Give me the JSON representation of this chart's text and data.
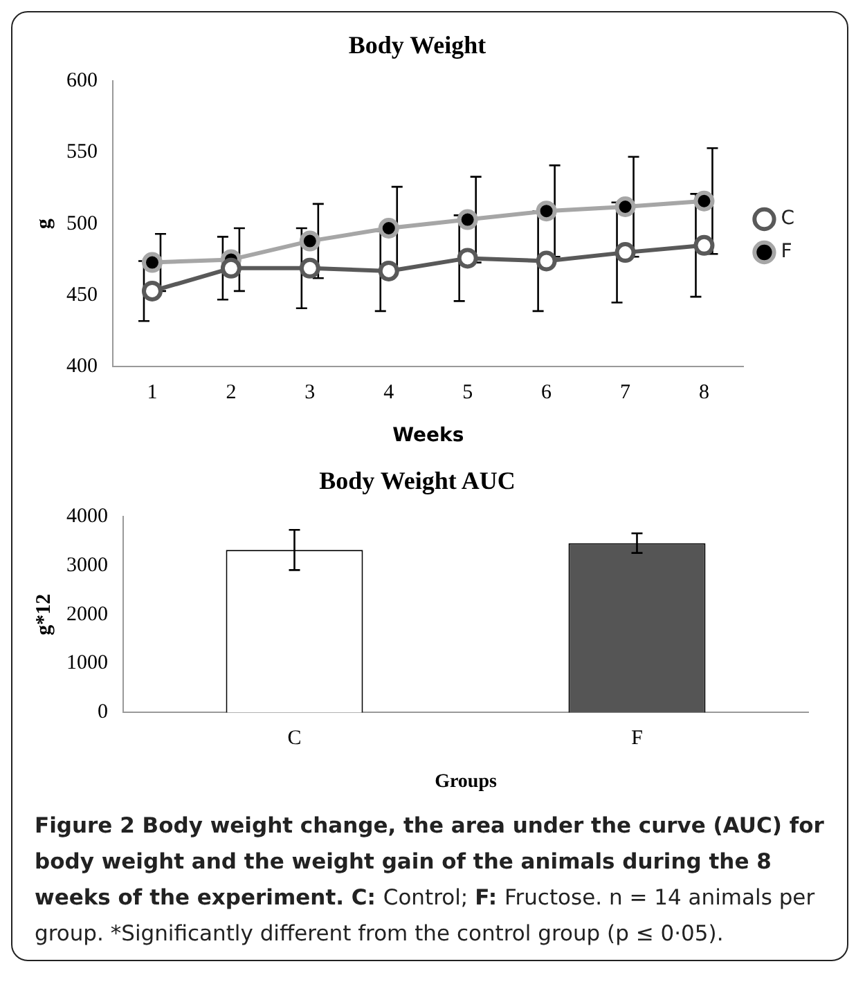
{
  "chart_data": [
    {
      "type": "line",
      "title": "Body Weight",
      "xlabel": "Weeks",
      "ylabel": "g",
      "categories": [
        "1",
        "2",
        "3",
        "4",
        "5",
        "6",
        "7",
        "8"
      ],
      "ylim": [
        400,
        600
      ],
      "yticks": [
        400,
        450,
        500,
        550,
        600
      ],
      "grid": false,
      "legend": "right",
      "marker": "circle",
      "line_style": "solid",
      "series": [
        {
          "name": "C",
          "color": "#595959",
          "colors": [
            "#ffffff",
            "#ffffff",
            "#ffffff",
            "#ffffff",
            "#ffffff",
            "#ffffff",
            "#ffffff",
            "#ffffff"
          ],
          "values": [
            453,
            469,
            469,
            467,
            476,
            474,
            480,
            485
          ],
          "errors": [
            21,
            22,
            28,
            28,
            30,
            35,
            35,
            36
          ]
        },
        {
          "name": "F",
          "color": "#a6a6a6",
          "colors": [
            "#000000",
            "#000000",
            "#000000",
            "#000000",
            "#000000",
            "#000000",
            "#000000",
            "#000000"
          ],
          "values": [
            473,
            475,
            488,
            497,
            503,
            509,
            512,
            516
          ],
          "errors": [
            20,
            22,
            26,
            29,
            30,
            32,
            35,
            37
          ]
        }
      ]
    },
    {
      "type": "bar",
      "title": "Body Weight AUC",
      "xlabel": "Groups",
      "ylabel": "g*12",
      "categories": [
        "C",
        "F"
      ],
      "values": [
        3320,
        3460
      ],
      "colors": [
        "#ffffff",
        "#555555"
      ],
      "errors": [
        410,
        200
      ],
      "ylim": [
        0,
        4000
      ],
      "yticks": [
        0,
        1000,
        2000,
        3000,
        4000
      ],
      "grid": false,
      "annotations": [
        "Figure 2 Body weight change, the area under the curve (AUC) for body weight and the weight gain of the animals during the 8 weeks of the experiment. C:",
        "Control;",
        "F:",
        "Fructose. n = 14 animals per group. *Significantly different from the control group (p ≤ 0·05)."
      ]
    }
  ]
}
